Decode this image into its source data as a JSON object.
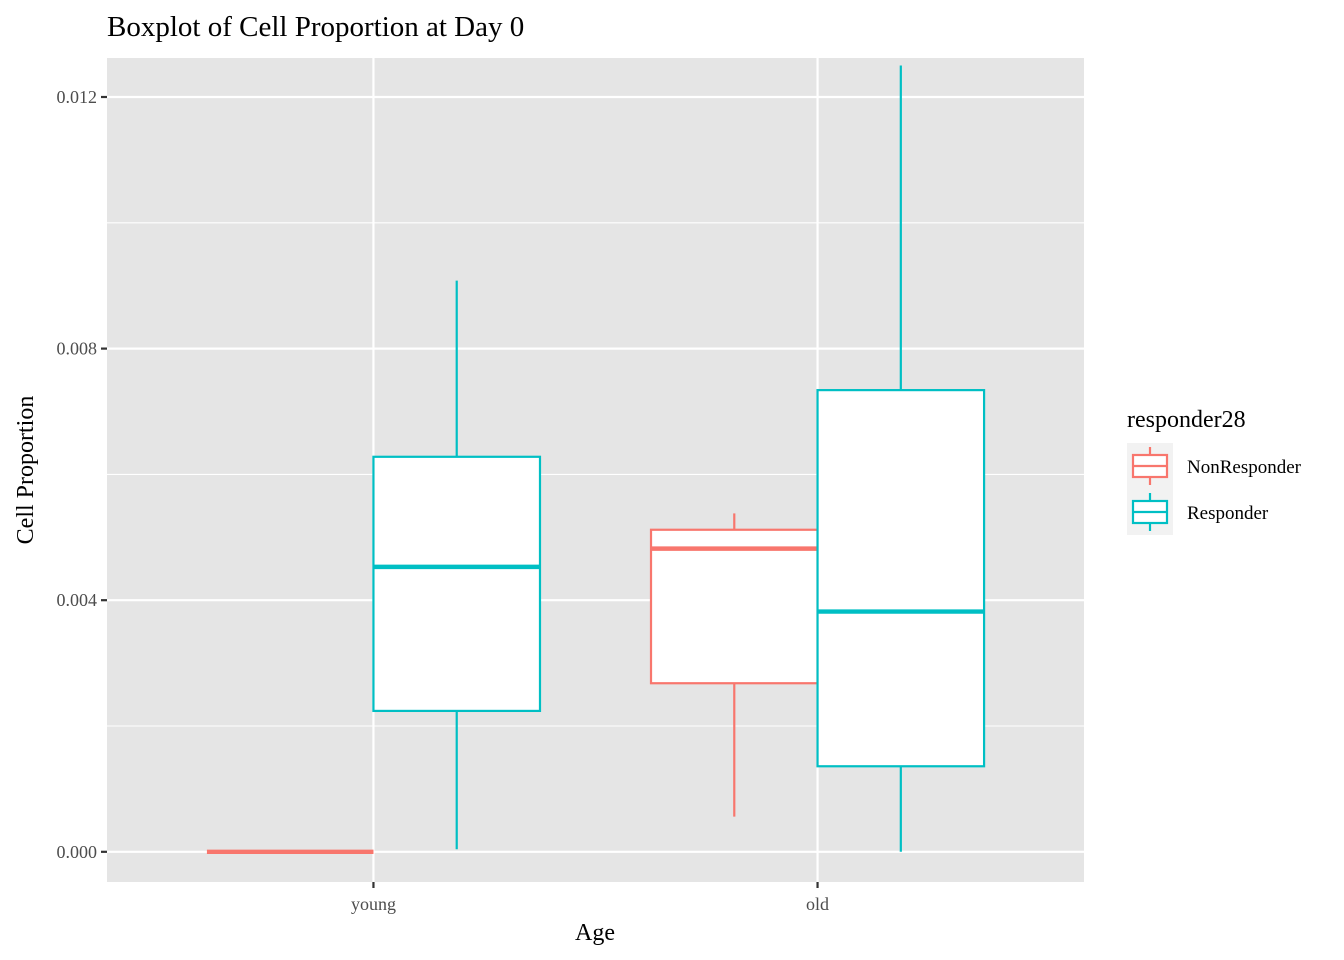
{
  "chart_data": {
    "type": "boxplot",
    "title": "Boxplot of Cell Proportion at Day 0",
    "xlabel": "Age",
    "ylabel": "Cell Proportion",
    "categories": [
      "young",
      "old"
    ],
    "ylim": [
      -0.00048,
      0.01262
    ],
    "yticks": [
      0.0,
      0.004,
      0.008,
      0.012
    ],
    "ytick_labels": [
      "0.000",
      "0.004",
      "0.008",
      "0.012"
    ],
    "grid": true,
    "legend": {
      "title": "responder28",
      "placement": "right",
      "entries": [
        "NonResponder",
        "Responder"
      ]
    },
    "series": [
      {
        "name": "NonResponder",
        "color": "#F8766D",
        "boxes": [
          {
            "category": "young",
            "min": 0.0,
            "q1": 0.0,
            "median": 0.0,
            "q3": 0.0,
            "max": 0.0
          },
          {
            "category": "old",
            "min": 0.00056,
            "q1": 0.00268,
            "median": 0.00482,
            "q3": 0.00512,
            "max": 0.00538
          }
        ]
      },
      {
        "name": "Responder",
        "color": "#00BFC4",
        "boxes": [
          {
            "category": "young",
            "min": 4e-05,
            "q1": 0.00224,
            "median": 0.00453,
            "q3": 0.00628,
            "max": 0.00908
          },
          {
            "category": "old",
            "min": 0.0,
            "q1": 0.00136,
            "median": 0.00382,
            "q3": 0.00734,
            "max": 0.0125
          }
        ]
      }
    ]
  }
}
